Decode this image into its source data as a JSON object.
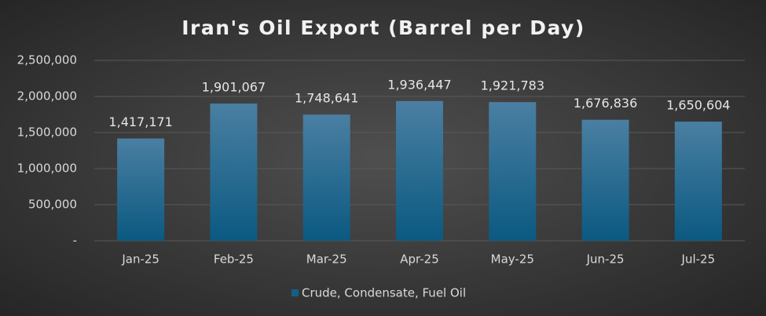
{
  "chart_data": {
    "type": "bar",
    "title": "Iran's Oil Export (Barrel per Day)",
    "categories": [
      "Jan-25",
      "Feb-25",
      "Mar-25",
      "Apr-25",
      "May-25",
      "Jun-25",
      "Jul-25"
    ],
    "series": [
      {
        "name": "Crude, Condensate, Fuel Oil",
        "color": "#155f86",
        "values": [
          1417171,
          1901067,
          1748641,
          1936447,
          1921783,
          1676836,
          1650604
        ],
        "value_labels": [
          "1,417,171",
          "1,901,067",
          "1,748,641",
          "1,936,447",
          "1,921,783",
          "1,676,836",
          "1,650,604"
        ]
      }
    ],
    "ylim": [
      0,
      2500000
    ],
    "yticks": [
      {
        "value": 0,
        "label": "-"
      },
      {
        "value": 500000,
        "label": "500,000"
      },
      {
        "value": 1000000,
        "label": "1,000,000"
      },
      {
        "value": 1500000,
        "label": "1,500,000"
      },
      {
        "value": 2000000,
        "label": "2,000,000"
      },
      {
        "value": 2500000,
        "label": "2,500,000"
      }
    ],
    "grid": true,
    "legend": "bottom"
  }
}
